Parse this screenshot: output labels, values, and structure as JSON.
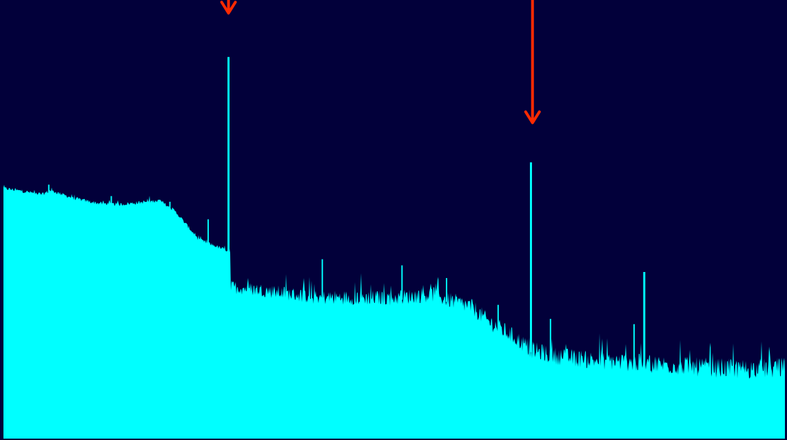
{
  "chart_data": {
    "type": "area",
    "title": "",
    "xlabel": "",
    "ylabel": "",
    "xlim": [
      0,
      1
    ],
    "ylim": [
      0,
      1
    ],
    "grid": false,
    "legend": "none",
    "colors": {
      "background": "#02003a",
      "fill": "#00ffff",
      "marker": "#ff2a00"
    },
    "baseline": {
      "x": [
        0.0,
        0.05,
        0.06,
        0.09,
        0.12,
        0.15,
        0.2,
        0.22,
        0.25,
        0.28,
        0.285,
        0.29,
        0.291,
        0.33,
        0.4,
        0.5,
        0.55,
        0.56,
        0.6,
        0.62,
        0.65,
        0.67,
        0.672,
        0.7,
        0.75,
        0.8,
        0.85,
        0.9,
        0.95,
        1.0
      ],
      "y": [
        0.571,
        0.557,
        0.566,
        0.548,
        0.537,
        0.534,
        0.543,
        0.518,
        0.454,
        0.433,
        0.43,
        0.43,
        0.346,
        0.339,
        0.322,
        0.321,
        0.33,
        0.322,
        0.3,
        0.268,
        0.236,
        0.21,
        0.205,
        0.19,
        0.18,
        0.174,
        0.168,
        0.162,
        0.159,
        0.162
      ]
    },
    "peaks": [
      {
        "x": 0.288,
        "y": 0.87
      },
      {
        "x": 0.675,
        "y": 0.63
      },
      {
        "x": 0.82,
        "y": 0.38
      },
      {
        "x": 0.408,
        "y": 0.409
      },
      {
        "x": 0.51,
        "y": 0.395
      },
      {
        "x": 0.262,
        "y": 0.5
      },
      {
        "x": 0.213,
        "y": 0.54
      },
      {
        "x": 0.138,
        "y": 0.553
      },
      {
        "x": 0.058,
        "y": 0.579
      },
      {
        "x": 0.807,
        "y": 0.261
      },
      {
        "x": 0.633,
        "y": 0.305
      },
      {
        "x": 0.567,
        "y": 0.366
      },
      {
        "x": 0.7,
        "y": 0.273
      }
    ],
    "markers": [
      {
        "x": 0.288,
        "y": 0.97
      },
      {
        "x": 0.677,
        "y": 0.72
      }
    ]
  }
}
